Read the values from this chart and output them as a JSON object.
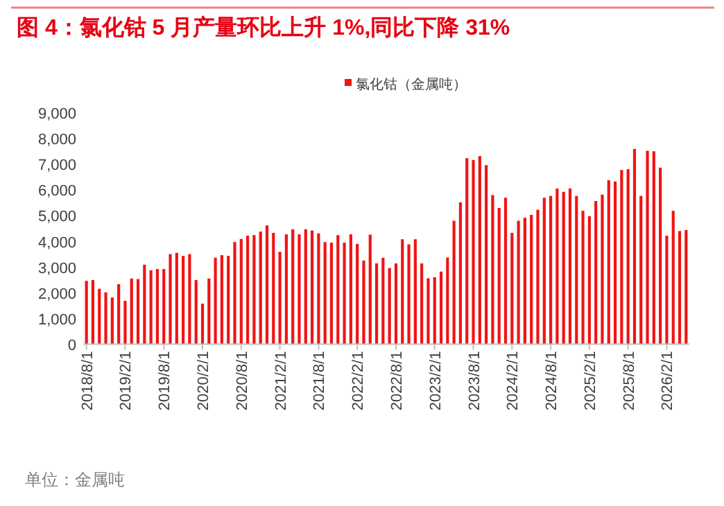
{
  "chart_data": {
    "type": "bar",
    "title": "图 4：氯化钴 5 月产量环比上升 1%,同比下降 31%",
    "categories": [
      "2018/8/1",
      null,
      null,
      null,
      null,
      null,
      "2019/2/1",
      null,
      null,
      null,
      null,
      null,
      "2019/8/1",
      null,
      null,
      null,
      null,
      null,
      "2020/2/1",
      null,
      null,
      null,
      null,
      null,
      "2020/8/1",
      null,
      null,
      null,
      null,
      null,
      "2021/2/1",
      null,
      null,
      null,
      null,
      null,
      "2021/8/1",
      null,
      null,
      null,
      null,
      null,
      "2022/2/1",
      null,
      null,
      null,
      null,
      null,
      "2022/8/1",
      null,
      null,
      null,
      null,
      null,
      "2023/2/1",
      null,
      null,
      null,
      null,
      null,
      "2023/8/1",
      null,
      null,
      null,
      null,
      null,
      "2024/2/1",
      null,
      null,
      null,
      null,
      null,
      "2024/8/1",
      null,
      null,
      null,
      null,
      null,
      "2025/2/1",
      null,
      null,
      null,
      null,
      null,
      "2025/8/1",
      null,
      null,
      null,
      null,
      null,
      "2026/2/1",
      null,
      null,
      null
    ],
    "series": [
      {
        "name": "氯化钴（金属吨）",
        "color": "#f01414",
        "values": [
          2470,
          2500,
          2160,
          2020,
          1820,
          2340,
          1690,
          2560,
          2540,
          3100,
          2880,
          2930,
          2930,
          3510,
          3560,
          3440,
          3510,
          2500,
          1580,
          2560,
          3370,
          3470,
          3440,
          3980,
          4100,
          4230,
          4250,
          4390,
          4630,
          4340,
          3600,
          4280,
          4480,
          4280,
          4480,
          4430,
          4320,
          3980,
          3960,
          4250,
          3960,
          4280,
          3910,
          3260,
          4270,
          3150,
          3370,
          2970,
          3150,
          4090,
          3890,
          4090,
          3150,
          2570,
          2610,
          2830,
          3380,
          4810,
          5530,
          7250,
          7180,
          7330,
          6980,
          5810,
          5310,
          5710,
          4340,
          4810,
          4930,
          5040,
          5240,
          5710,
          5780,
          6070,
          5940,
          6070,
          5780,
          5200,
          4990,
          5580,
          5830,
          6390,
          6340,
          6790,
          6820,
          7610,
          5780,
          7540,
          7520,
          6880,
          4230,
          5200,
          4410,
          4450
        ]
      }
    ],
    "ylim": [
      0,
      9000
    ],
    "yticks": [
      0,
      {
        "value": 1000,
        "label": "1,000"
      },
      {
        "value": 2000,
        "label": "2,000"
      },
      {
        "value": 3000,
        "label": "3,000"
      },
      {
        "value": 4000,
        "label": "4,000"
      },
      {
        "value": 5000,
        "label": "5,000"
      },
      {
        "value": 6000,
        "label": "6,000"
      },
      {
        "value": 7000,
        "label": "7,000"
      },
      {
        "value": 8000,
        "label": "8,000"
      },
      {
        "value": 9000,
        "label": "9,000"
      }
    ],
    "legend": "top",
    "annotations": [
      "单位：金属吨"
    ]
  }
}
